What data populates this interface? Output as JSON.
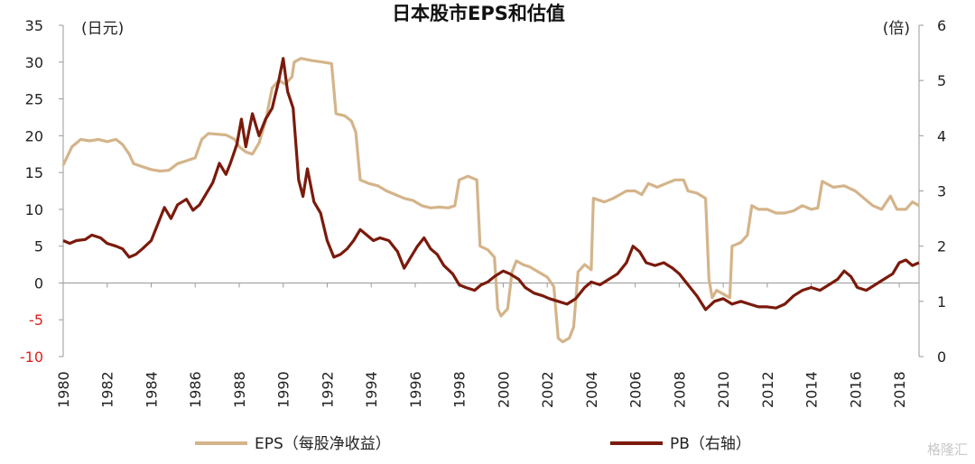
{
  "chart_data": {
    "type": "line",
    "title": "日本股市EPS和估值",
    "left_unit": "(日元)",
    "right_unit": "(倍)",
    "watermark": "格隆汇",
    "y_left": {
      "min": -10,
      "max": 35,
      "ticks": [
        "35",
        "30",
        "25",
        "20",
        "15",
        "10",
        "5",
        "0",
        "-5",
        "-10"
      ],
      "negative_color": "#e0201b"
    },
    "y_right": {
      "min": 0,
      "max": 6,
      "ticks": [
        "6",
        "5",
        "4",
        "3",
        "2",
        "1",
        "0"
      ]
    },
    "x_range": [
      1980,
      2018.9
    ],
    "x_ticks": [
      "1980",
      "1982",
      "1984",
      "1986",
      "1988",
      "1990",
      "1992",
      "1994",
      "1996",
      "1998",
      "2000",
      "2002",
      "2004",
      "2006",
      "2008",
      "2010",
      "2012",
      "2014",
      "2016",
      "2018"
    ],
    "grid": false,
    "legend_position": "bottom",
    "series": [
      {
        "name": "EPS（每股净收益）",
        "axis": "left",
        "color": "#d4b48a",
        "points": [
          [
            1980.0,
            16
          ],
          [
            1980.4,
            18.5
          ],
          [
            1980.8,
            19.5
          ],
          [
            1981.2,
            19.3
          ],
          [
            1981.6,
            19.5
          ],
          [
            1982.0,
            19.2
          ],
          [
            1982.4,
            19.5
          ],
          [
            1982.7,
            18.8
          ],
          [
            1983.0,
            17.5
          ],
          [
            1983.2,
            16.2
          ],
          [
            1983.6,
            15.8
          ],
          [
            1984.0,
            15.4
          ],
          [
            1984.4,
            15.2
          ],
          [
            1984.8,
            15.3
          ],
          [
            1985.2,
            16.2
          ],
          [
            1985.6,
            16.6
          ],
          [
            1986.0,
            17.0
          ],
          [
            1986.3,
            19.5
          ],
          [
            1986.6,
            20.3
          ],
          [
            1987.0,
            20.2
          ],
          [
            1987.4,
            20.1
          ],
          [
            1987.8,
            19.5
          ],
          [
            1988.0,
            18.5
          ],
          [
            1988.3,
            17.8
          ],
          [
            1988.6,
            17.5
          ],
          [
            1988.9,
            19
          ],
          [
            1989.2,
            22
          ],
          [
            1989.5,
            26.5
          ],
          [
            1989.8,
            27.5
          ],
          [
            1990.1,
            27
          ],
          [
            1990.4,
            28
          ],
          [
            1990.5,
            30
          ],
          [
            1990.8,
            30.5
          ],
          [
            1991.3,
            30.2
          ],
          [
            1991.8,
            30.0
          ],
          [
            1992.2,
            29.8
          ],
          [
            1992.4,
            23
          ],
          [
            1992.8,
            22.7
          ],
          [
            1993.1,
            22
          ],
          [
            1993.3,
            20.5
          ],
          [
            1993.5,
            14
          ],
          [
            1993.9,
            13.5
          ],
          [
            1994.3,
            13.2
          ],
          [
            1994.7,
            12.5
          ],
          [
            1995.1,
            12
          ],
          [
            1995.5,
            11.5
          ],
          [
            1995.9,
            11.2
          ],
          [
            1996.3,
            10.5
          ],
          [
            1996.7,
            10.2
          ],
          [
            1997.1,
            10.3
          ],
          [
            1997.5,
            10.2
          ],
          [
            1997.8,
            10.5
          ],
          [
            1998.0,
            14
          ],
          [
            1998.4,
            14.5
          ],
          [
            1998.8,
            14
          ],
          [
            1998.95,
            5
          ],
          [
            1999.3,
            4.5
          ],
          [
            1999.6,
            3.5
          ],
          [
            1999.75,
            -3.5
          ],
          [
            1999.9,
            -4.5
          ],
          [
            2000.2,
            -3.5
          ],
          [
            2000.4,
            1.5
          ],
          [
            2000.6,
            3
          ],
          [
            2000.9,
            2.5
          ],
          [
            2001.2,
            2.2
          ],
          [
            2001.6,
            1.5
          ],
          [
            2002.0,
            0.8
          ],
          [
            2002.3,
            -0.5
          ],
          [
            2002.5,
            -7.5
          ],
          [
            2002.7,
            -8
          ],
          [
            2003.0,
            -7.5
          ],
          [
            2003.2,
            -6
          ],
          [
            2003.4,
            1.5
          ],
          [
            2003.7,
            2.5
          ],
          [
            2004.0,
            1.8
          ],
          [
            2004.1,
            11.5
          ],
          [
            2004.6,
            11
          ],
          [
            2005.0,
            11.5
          ],
          [
            2005.3,
            12
          ],
          [
            2005.6,
            12.5
          ],
          [
            2006.0,
            12.5
          ],
          [
            2006.3,
            12
          ],
          [
            2006.6,
            13.5
          ],
          [
            2007.0,
            13
          ],
          [
            2007.4,
            13.5
          ],
          [
            2007.8,
            14
          ],
          [
            2008.2,
            14
          ],
          [
            2008.4,
            12.5
          ],
          [
            2008.8,
            12.2
          ],
          [
            2009.2,
            11.5
          ],
          [
            2009.35,
            0.5
          ],
          [
            2009.5,
            -2
          ],
          [
            2009.7,
            -1
          ],
          [
            2010.0,
            -1.5
          ],
          [
            2010.3,
            -2
          ],
          [
            2010.4,
            5
          ],
          [
            2010.8,
            5.5
          ],
          [
            2011.1,
            6.5
          ],
          [
            2011.3,
            10.5
          ],
          [
            2011.6,
            10
          ],
          [
            2012.0,
            10
          ],
          [
            2012.4,
            9.5
          ],
          [
            2012.8,
            9.5
          ],
          [
            2013.2,
            9.8
          ],
          [
            2013.6,
            10.5
          ],
          [
            2014.0,
            10
          ],
          [
            2014.3,
            10.2
          ],
          [
            2014.5,
            13.8
          ],
          [
            2015.0,
            13
          ],
          [
            2015.5,
            13.2
          ],
          [
            2016.0,
            12.5
          ],
          [
            2016.4,
            11.5
          ],
          [
            2016.8,
            10.5
          ],
          [
            2017.2,
            10
          ],
          [
            2017.6,
            11.8
          ],
          [
            2017.9,
            10
          ],
          [
            2018.3,
            10
          ],
          [
            2018.6,
            11
          ],
          [
            2018.9,
            10.5
          ]
        ]
      },
      {
        "name": "PB（右轴）",
        "axis": "right",
        "color": "#7a1a0c",
        "points": [
          [
            1980.0,
            2.1
          ],
          [
            1980.3,
            2.05
          ],
          [
            1980.6,
            2.1
          ],
          [
            1981.0,
            2.12
          ],
          [
            1981.3,
            2.2
          ],
          [
            1981.7,
            2.15
          ],
          [
            1982.0,
            2.05
          ],
          [
            1982.4,
            2.0
          ],
          [
            1982.7,
            1.95
          ],
          [
            1983.0,
            1.8
          ],
          [
            1983.3,
            1.85
          ],
          [
            1983.6,
            1.95
          ],
          [
            1984.0,
            2.1
          ],
          [
            1984.3,
            2.4
          ],
          [
            1984.6,
            2.7
          ],
          [
            1984.9,
            2.5
          ],
          [
            1985.2,
            2.75
          ],
          [
            1985.6,
            2.85
          ],
          [
            1985.9,
            2.65
          ],
          [
            1986.2,
            2.75
          ],
          [
            1986.5,
            2.95
          ],
          [
            1986.8,
            3.15
          ],
          [
            1987.1,
            3.5
          ],
          [
            1987.4,
            3.3
          ],
          [
            1987.6,
            3.5
          ],
          [
            1987.9,
            3.85
          ],
          [
            1988.1,
            4.3
          ],
          [
            1988.3,
            3.8
          ],
          [
            1988.6,
            4.4
          ],
          [
            1988.9,
            4.0
          ],
          [
            1989.2,
            4.3
          ],
          [
            1989.5,
            4.5
          ],
          [
            1989.8,
            5.0
          ],
          [
            1990.0,
            5.4
          ],
          [
            1990.2,
            4.8
          ],
          [
            1990.45,
            4.5
          ],
          [
            1990.7,
            3.2
          ],
          [
            1990.9,
            2.9
          ],
          [
            1991.1,
            3.4
          ],
          [
            1991.4,
            2.8
          ],
          [
            1991.7,
            2.6
          ],
          [
            1992.0,
            2.1
          ],
          [
            1992.3,
            1.8
          ],
          [
            1992.6,
            1.85
          ],
          [
            1992.9,
            1.95
          ],
          [
            1993.2,
            2.1
          ],
          [
            1993.5,
            2.3
          ],
          [
            1993.8,
            2.2
          ],
          [
            1994.1,
            2.1
          ],
          [
            1994.4,
            2.15
          ],
          [
            1994.8,
            2.1
          ],
          [
            1995.2,
            1.9
          ],
          [
            1995.5,
            1.6
          ],
          [
            1995.8,
            1.8
          ],
          [
            1996.1,
            2.0
          ],
          [
            1996.4,
            2.15
          ],
          [
            1996.7,
            1.95
          ],
          [
            1997.0,
            1.85
          ],
          [
            1997.3,
            1.65
          ],
          [
            1997.7,
            1.5
          ],
          [
            1998.0,
            1.3
          ],
          [
            1998.3,
            1.25
          ],
          [
            1998.7,
            1.2
          ],
          [
            1999.0,
            1.3
          ],
          [
            1999.3,
            1.35
          ],
          [
            1999.6,
            1.45
          ],
          [
            2000.0,
            1.55
          ],
          [
            2000.3,
            1.5
          ],
          [
            2000.7,
            1.4
          ],
          [
            2001.0,
            1.25
          ],
          [
            2001.4,
            1.15
          ],
          [
            2001.8,
            1.1
          ],
          [
            2002.1,
            1.05
          ],
          [
            2002.5,
            1.0
          ],
          [
            2002.9,
            0.95
          ],
          [
            2003.3,
            1.05
          ],
          [
            2003.7,
            1.25
          ],
          [
            2004.0,
            1.35
          ],
          [
            2004.4,
            1.3
          ],
          [
            2004.8,
            1.4
          ],
          [
            2005.2,
            1.5
          ],
          [
            2005.6,
            1.7
          ],
          [
            2005.9,
            2.0
          ],
          [
            2006.2,
            1.9
          ],
          [
            2006.5,
            1.7
          ],
          [
            2006.9,
            1.65
          ],
          [
            2007.3,
            1.7
          ],
          [
            2007.7,
            1.6
          ],
          [
            2008.0,
            1.5
          ],
          [
            2008.4,
            1.3
          ],
          [
            2008.8,
            1.1
          ],
          [
            2009.2,
            0.85
          ],
          [
            2009.6,
            1.0
          ],
          [
            2010.0,
            1.05
          ],
          [
            2010.4,
            0.95
          ],
          [
            2010.8,
            1.0
          ],
          [
            2011.2,
            0.95
          ],
          [
            2011.6,
            0.9
          ],
          [
            2012.0,
            0.9
          ],
          [
            2012.4,
            0.88
          ],
          [
            2012.8,
            0.95
          ],
          [
            2013.2,
            1.1
          ],
          [
            2013.6,
            1.2
          ],
          [
            2014.0,
            1.25
          ],
          [
            2014.4,
            1.2
          ],
          [
            2014.8,
            1.3
          ],
          [
            2015.2,
            1.4
          ],
          [
            2015.5,
            1.55
          ],
          [
            2015.8,
            1.45
          ],
          [
            2016.1,
            1.25
          ],
          [
            2016.5,
            1.2
          ],
          [
            2016.9,
            1.3
          ],
          [
            2017.3,
            1.4
          ],
          [
            2017.7,
            1.5
          ],
          [
            2018.0,
            1.7
          ],
          [
            2018.3,
            1.75
          ],
          [
            2018.6,
            1.65
          ],
          [
            2018.9,
            1.7
          ]
        ]
      }
    ]
  }
}
